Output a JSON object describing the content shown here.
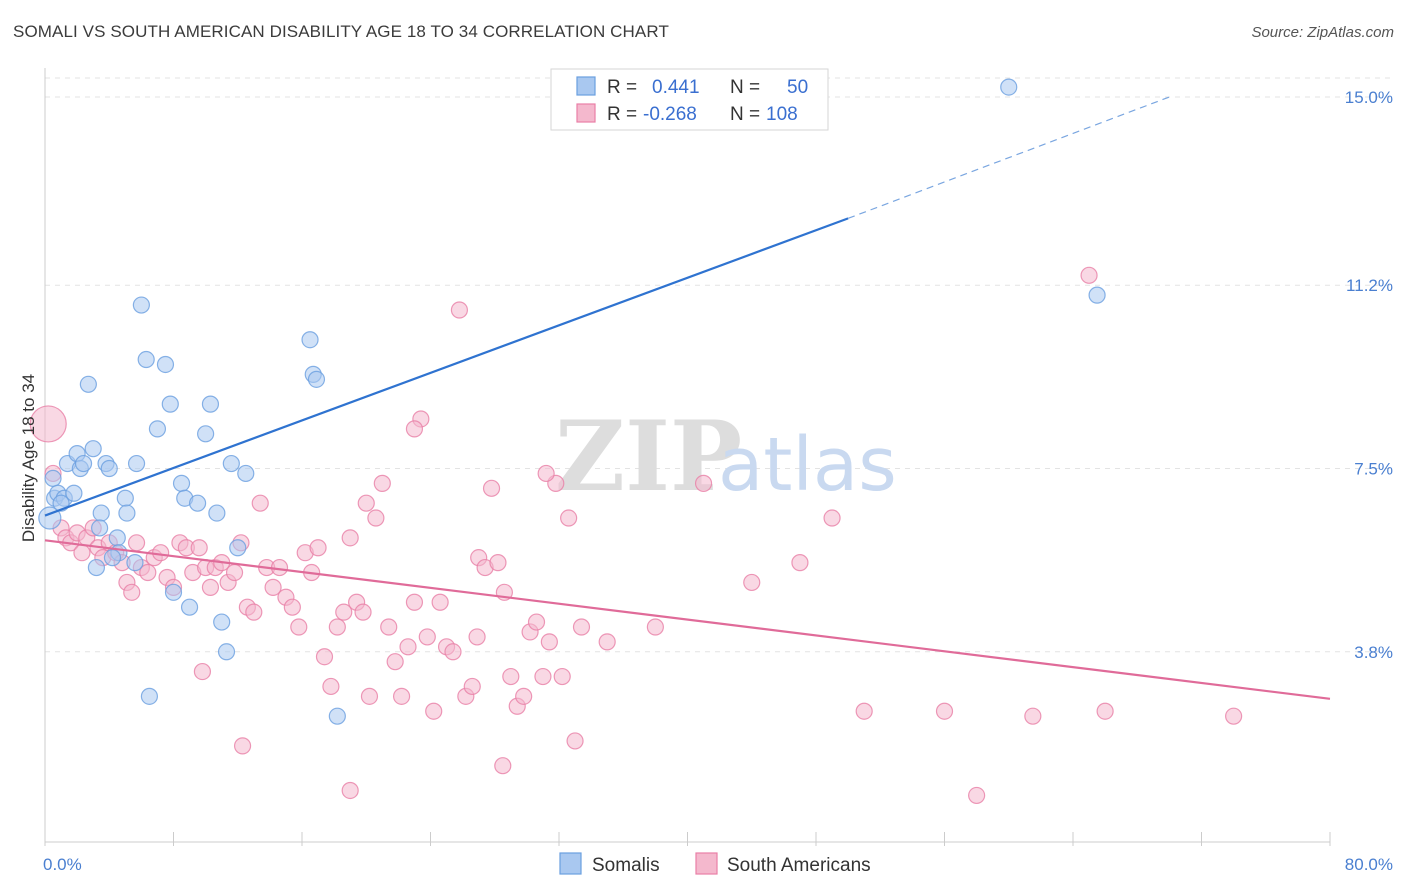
{
  "title": "SOMALI VS SOUTH AMERICAN DISABILITY AGE 18 TO 34 CORRELATION CHART",
  "source": "Source: ZipAtlas.com",
  "colors": {
    "blue": "#6a9fe0",
    "blue_fill": "#a9c8f0",
    "pink": "#e97fa6",
    "pink_fill": "#f4b8cd",
    "blue_line": "#2f73d0",
    "pink_line": "#e06b99"
  },
  "chart_data": {
    "type": "scatter",
    "xlabel": "",
    "ylabel": "Disability Age 18 to 34",
    "xlim": [
      0,
      80
    ],
    "ylim": [
      0.6,
      15.5
    ],
    "x_tick_labels": [
      "0.0%",
      "80.0%"
    ],
    "y_ticks": [
      3.8,
      7.5,
      11.2,
      15.0
    ],
    "y_tick_labels": [
      "3.8%",
      "7.5%",
      "11.2%",
      "15.0%"
    ],
    "legend": [
      {
        "r_label": "R =",
        "r_value": "0.441",
        "n_label": "N =",
        "n_value": "50"
      },
      {
        "r_label": "R =",
        "r_value": "-0.268",
        "n_label": "N =",
        "n_value": "108"
      }
    ],
    "series": [
      {
        "name": "Somalis",
        "trend": {
          "x": [
            0,
            50
          ],
          "y": [
            6.55,
            12.55
          ],
          "dashed_to": [
            70,
            15.0
          ]
        },
        "points": [
          [
            0.3,
            6.5
          ],
          [
            0.5,
            7.3
          ],
          [
            0.6,
            6.9
          ],
          [
            0.8,
            7.0
          ],
          [
            1.2,
            6.9
          ],
          [
            1.4,
            7.6
          ],
          [
            1.8,
            7.0
          ],
          [
            2.0,
            7.8
          ],
          [
            2.2,
            7.5
          ],
          [
            2.4,
            7.6
          ],
          [
            3.0,
            7.9
          ],
          [
            3.5,
            6.6
          ],
          [
            3.8,
            7.6
          ],
          [
            4.0,
            7.5
          ],
          [
            4.5,
            6.1
          ],
          [
            4.6,
            5.8
          ],
          [
            5.0,
            6.9
          ],
          [
            5.1,
            6.6
          ],
          [
            5.6,
            5.6
          ],
          [
            5.7,
            7.6
          ],
          [
            6.0,
            10.8
          ],
          [
            6.3,
            9.7
          ],
          [
            6.5,
            2.9
          ],
          [
            7.0,
            8.3
          ],
          [
            7.5,
            9.6
          ],
          [
            7.8,
            8.8
          ],
          [
            8.0,
            5.0
          ],
          [
            8.5,
            7.2
          ],
          [
            8.7,
            6.9
          ],
          [
            9.0,
            4.7
          ],
          [
            9.5,
            6.8
          ],
          [
            10.0,
            8.2
          ],
          [
            10.3,
            8.8
          ],
          [
            10.7,
            6.6
          ],
          [
            11.0,
            4.4
          ],
          [
            11.3,
            3.8
          ],
          [
            11.6,
            7.6
          ],
          [
            12.5,
            7.4
          ],
          [
            3.2,
            5.5
          ],
          [
            4.2,
            5.7
          ],
          [
            12.0,
            5.9
          ],
          [
            1.0,
            6.8
          ],
          [
            16.5,
            10.1
          ],
          [
            16.7,
            9.4
          ],
          [
            16.9,
            9.3
          ],
          [
            18.2,
            2.5
          ],
          [
            60.0,
            15.2
          ],
          [
            65.5,
            11.0
          ],
          [
            2.7,
            9.2
          ],
          [
            3.4,
            6.3
          ]
        ]
      },
      {
        "name": "South Americans",
        "trend": {
          "x": [
            0,
            80
          ],
          "y": [
            6.05,
            2.85
          ]
        },
        "points": [
          [
            0.2,
            8.4
          ],
          [
            0.5,
            7.4
          ],
          [
            1.0,
            6.3
          ],
          [
            1.3,
            6.1
          ],
          [
            1.6,
            6.0
          ],
          [
            2.0,
            6.2
          ],
          [
            2.3,
            5.8
          ],
          [
            2.6,
            6.1
          ],
          [
            3.0,
            6.3
          ],
          [
            3.3,
            5.9
          ],
          [
            3.6,
            5.7
          ],
          [
            4.0,
            6.0
          ],
          [
            4.4,
            5.8
          ],
          [
            4.8,
            5.6
          ],
          [
            5.1,
            5.2
          ],
          [
            5.4,
            5.0
          ],
          [
            5.7,
            6.0
          ],
          [
            6.0,
            5.5
          ],
          [
            6.4,
            5.4
          ],
          [
            6.8,
            5.7
          ],
          [
            7.2,
            5.8
          ],
          [
            7.6,
            5.3
          ],
          [
            8.0,
            5.1
          ],
          [
            8.4,
            6.0
          ],
          [
            8.8,
            5.9
          ],
          [
            9.2,
            5.4
          ],
          [
            9.6,
            5.9
          ],
          [
            10.0,
            5.5
          ],
          [
            10.3,
            5.1
          ],
          [
            10.6,
            5.5
          ],
          [
            11.0,
            5.6
          ],
          [
            11.4,
            5.2
          ],
          [
            11.8,
            5.4
          ],
          [
            12.2,
            6.0
          ],
          [
            12.6,
            4.7
          ],
          [
            13.0,
            4.6
          ],
          [
            13.4,
            6.8
          ],
          [
            13.8,
            5.5
          ],
          [
            14.2,
            5.1
          ],
          [
            14.6,
            5.5
          ],
          [
            15.0,
            4.9
          ],
          [
            15.4,
            4.7
          ],
          [
            15.8,
            4.3
          ],
          [
            16.2,
            5.8
          ],
          [
            16.6,
            5.4
          ],
          [
            17.0,
            5.9
          ],
          [
            17.4,
            3.7
          ],
          [
            17.8,
            3.1
          ],
          [
            18.2,
            4.3
          ],
          [
            18.6,
            4.6
          ],
          [
            19.0,
            6.1
          ],
          [
            19.4,
            4.8
          ],
          [
            19.8,
            4.6
          ],
          [
            20.2,
            2.9
          ],
          [
            20.6,
            6.5
          ],
          [
            21.0,
            7.2
          ],
          [
            21.4,
            4.3
          ],
          [
            21.8,
            3.6
          ],
          [
            22.2,
            2.9
          ],
          [
            22.6,
            3.9
          ],
          [
            23.0,
            4.8
          ],
          [
            23.4,
            8.5
          ],
          [
            23.8,
            4.1
          ],
          [
            24.2,
            2.6
          ],
          [
            24.6,
            4.8
          ],
          [
            25.0,
            3.9
          ],
          [
            25.4,
            3.8
          ],
          [
            25.8,
            10.7
          ],
          [
            26.2,
            2.9
          ],
          [
            26.6,
            3.1
          ],
          [
            27.0,
            5.7
          ],
          [
            27.4,
            5.5
          ],
          [
            27.8,
            7.1
          ],
          [
            28.2,
            5.6
          ],
          [
            28.6,
            5.0
          ],
          [
            29.0,
            3.3
          ],
          [
            29.4,
            2.7
          ],
          [
            29.8,
            2.9
          ],
          [
            30.2,
            4.2
          ],
          [
            30.6,
            4.4
          ],
          [
            31.0,
            3.3
          ],
          [
            31.4,
            4.0
          ],
          [
            31.8,
            7.2
          ],
          [
            32.2,
            3.3
          ],
          [
            32.6,
            6.5
          ],
          [
            33.0,
            2.0
          ],
          [
            33.4,
            4.3
          ],
          [
            35.0,
            4.0
          ],
          [
            38.0,
            4.3
          ],
          [
            41.0,
            7.2
          ],
          [
            44.0,
            5.2
          ],
          [
            47.0,
            5.6
          ],
          [
            49.0,
            6.5
          ],
          [
            51.0,
            2.6
          ],
          [
            56.0,
            2.6
          ],
          [
            58.0,
            0.9
          ],
          [
            65.0,
            11.4
          ],
          [
            61.5,
            2.5
          ],
          [
            66.0,
            2.6
          ],
          [
            74.0,
            2.5
          ],
          [
            23.0,
            8.3
          ],
          [
            19.0,
            1.0
          ],
          [
            20.0,
            6.8
          ],
          [
            28.5,
            1.5
          ],
          [
            31.2,
            7.4
          ],
          [
            9.8,
            3.4
          ],
          [
            12.3,
            1.9
          ],
          [
            26.9,
            4.1
          ]
        ]
      }
    ]
  }
}
